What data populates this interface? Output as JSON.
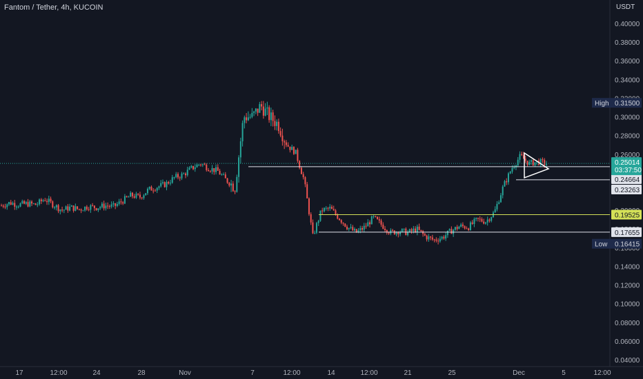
{
  "header": {
    "title": "Fantom / Tether, 4h, KUCOIN",
    "currency": "USDT"
  },
  "colors": {
    "background": "#131722",
    "up": "#26a69a",
    "down": "#ef5350",
    "grid": "#1f2430",
    "axis_text": "#b2b5be",
    "white_line": "#e0e3eb",
    "yellow_line": "#d4e157",
    "last_price": "#26a69a",
    "marker_bg": "#1e2a4a"
  },
  "chart_data": {
    "type": "candlestick",
    "title": "Fantom / Tether, 4h, KUCOIN",
    "ylabel": "USDT",
    "ylim": [
      0.03,
      0.41
    ],
    "grid": false,
    "y_ticks": [
      "0.40000",
      "0.38000",
      "0.36000",
      "0.34000",
      "0.32000",
      "0.30000",
      "0.28000",
      "0.26000",
      "0.24000",
      "0.22000",
      "0.20000",
      "0.18000",
      "0.16000",
      "0.14000",
      "0.12000",
      "0.10000",
      "0.08000",
      "0.06000",
      "0.04000"
    ],
    "x_ticks": [
      "17",
      "12:00",
      "24",
      "28",
      "Nov",
      "7",
      "12:00",
      "14",
      "12:00",
      "21",
      "25",
      "Dec",
      "5",
      "12:00"
    ],
    "close_path": [
      0.205,
      0.208,
      0.206,
      0.207,
      0.206,
      0.212,
      0.206,
      0.2,
      0.203,
      0.201,
      0.204,
      0.203,
      0.205,
      0.204,
      0.21,
      0.216,
      0.214,
      0.222,
      0.225,
      0.228,
      0.235,
      0.238,
      0.245,
      0.25,
      0.245,
      0.242,
      0.232,
      0.225,
      0.3,
      0.3,
      0.312,
      0.3,
      0.292,
      0.27,
      0.262,
      0.232,
      0.172,
      0.2,
      0.202,
      0.192,
      0.182,
      0.176,
      0.182,
      0.192,
      0.184,
      0.176,
      0.178,
      0.176,
      0.18,
      0.172,
      0.168,
      0.171,
      0.178,
      0.183,
      0.182,
      0.19,
      0.188,
      0.198,
      0.225,
      0.245,
      0.258,
      0.25,
      0.252,
      0.25
    ],
    "high": {
      "label": "High",
      "value": "0.31500"
    },
    "low": {
      "label": "Low",
      "value": "0.16415"
    },
    "last_price": {
      "value": "0.25014",
      "countdown": "03:37:50"
    },
    "levels": [
      {
        "value": "0.24664",
        "color": "#e0e3eb"
      },
      {
        "value": "0.23263",
        "color": "#e0e3eb"
      },
      {
        "value": "0.19525",
        "color": "#d4e157"
      },
      {
        "value": "0.17655",
        "color": "#e0e3eb"
      }
    ]
  }
}
